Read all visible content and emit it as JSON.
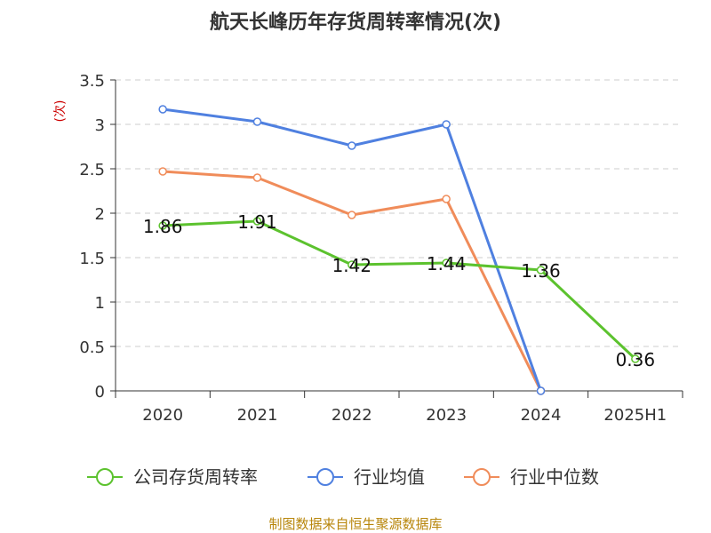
{
  "chart_data": {
    "type": "line",
    "title": "航天长峰历年存货周转率情况(次)",
    "ylabel": "(次)",
    "categories": [
      "2020",
      "2021",
      "2022",
      "2023",
      "2024",
      "2025H1"
    ],
    "ylim": [
      0,
      3.5
    ],
    "yticks": [
      "0",
      "0.5",
      "1",
      "1.5",
      "2",
      "2.5",
      "3",
      "3.5"
    ],
    "grid": true,
    "legend_position": "bottom",
    "series": [
      {
        "name": "公司存货周转率",
        "color": "#5cc22e",
        "values": [
          1.86,
          1.91,
          1.42,
          1.44,
          1.36,
          0.36
        ],
        "labels": [
          "1.86",
          "1.91",
          "1.42",
          "1.44",
          "1.36",
          "0.36"
        ]
      },
      {
        "name": "行业均值",
        "color": "#4f80e0",
        "values": [
          3.17,
          3.03,
          2.76,
          3.0,
          0,
          null
        ]
      },
      {
        "name": "行业中位数",
        "color": "#f08c5a",
        "values": [
          2.47,
          2.4,
          1.98,
          2.16,
          0,
          null
        ]
      }
    ],
    "source": "制图数据来自恒生聚源数据库"
  }
}
